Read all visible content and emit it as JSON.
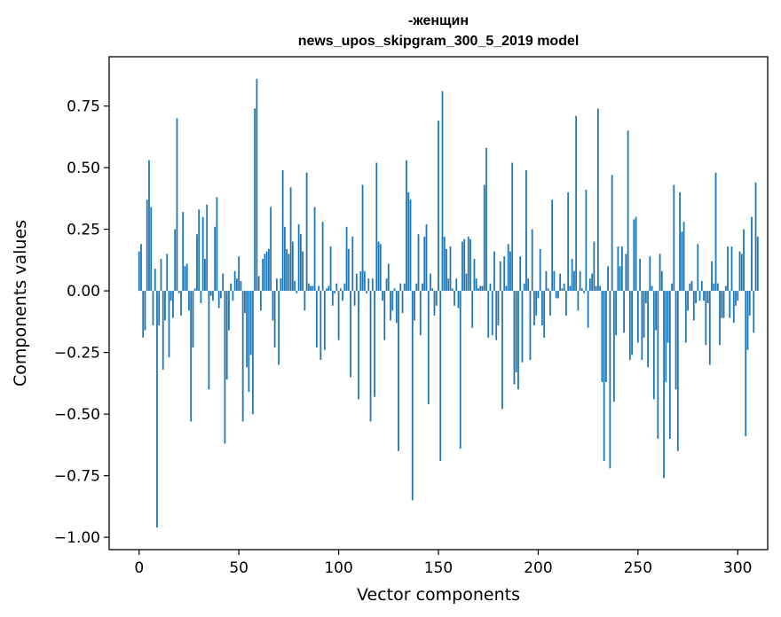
{
  "chart_data": {
    "type": "bar",
    "title_line1": "-женщин",
    "title_line2": "news_upos_skipgram_300_5_2019 model",
    "xlabel": "Vector components",
    "ylabel": "Components values",
    "xlim": [
      -15,
      315
    ],
    "ylim": [
      -1.05,
      0.95
    ],
    "xticks": [
      0,
      50,
      100,
      150,
      200,
      250,
      300
    ],
    "yticks": [
      -1.0,
      -0.75,
      -0.5,
      -0.25,
      0.0,
      0.25,
      0.5,
      0.75
    ],
    "ytick_labels": [
      "−1.00",
      "−0.75",
      "−0.50",
      "−0.25",
      "0.00",
      "0.25",
      "0.50",
      "0.75"
    ],
    "xtick_labels": [
      "0",
      "50",
      "100",
      "150",
      "200",
      "250",
      "300"
    ],
    "bar_color": "#1f77b4",
    "values": [
      0.16,
      0.19,
      -0.19,
      -0.16,
      0.37,
      0.53,
      0.34,
      -0.14,
      0.09,
      -0.96,
      -0.14,
      0.13,
      -0.32,
      -0.12,
      0.15,
      -0.27,
      -0.04,
      -0.11,
      0.25,
      0.7,
      -0.01,
      -0.1,
      0.32,
      0.1,
      0.11,
      -0.08,
      -0.53,
      -0.23,
      0.01,
      0.23,
      0.33,
      -0.05,
      0.3,
      0.13,
      0.35,
      -0.4,
      -0.02,
      -0.04,
      0.26,
      0.38,
      -0.07,
      -0.03,
      0.07,
      -0.62,
      -0.36,
      -0.16,
      0.03,
      -0.04,
      0.08,
      0.05,
      0.14,
      0.04,
      -0.53,
      -0.09,
      -0.31,
      -0.41,
      -0.26,
      -0.5,
      0.74,
      0.86,
      0.06,
      -0.08,
      0.13,
      0.15,
      0.16,
      0.17,
      0.34,
      -0.12,
      -0.23,
      0.05,
      -0.3,
      0.05,
      0.49,
      0.26,
      0.17,
      0.15,
      0.42,
      0.2,
      0.04,
      -0.01,
      0.27,
      0.23,
      0.16,
      -0.08,
      0.48,
      0.03,
      0.02,
      0.02,
      0.34,
      -0.23,
      0.02,
      -0.28,
      0.28,
      -0.24,
      0.01,
      0.02,
      0.18,
      -0.06,
      -0.01,
      0.03,
      -0.2,
      0.01,
      -0.04,
      0.03,
      0.26,
      0.17,
      -0.35,
      0.22,
      -0.06,
      0.07,
      -0.44,
      0.08,
      0.43,
      0.08,
      -0.01,
      0.05,
      -0.53,
      0.05,
      -0.43,
      0.52,
      0.2,
      0.19,
      -0.04,
      -0.2,
      0.05,
      0.11,
      -0.12,
      -0.08,
      0.01,
      -0.13,
      -0.65,
      0.03,
      -0.09,
      0.03,
      0.53,
      0.4,
      0.37,
      -0.85,
      -0.12,
      0.03,
      0.23,
      -0.18,
      0.03,
      0.22,
      0.27,
      -0.46,
      0.07,
      0.01,
      -0.1,
      -0.06,
      0.69,
      -0.69,
      0.81,
      0.22,
      0.17,
      0.05,
      0.18,
      0.01,
      -0.06,
      0.05,
      -0.07,
      -0.64,
      0.2,
      0.21,
      0.07,
      0.22,
      0.21,
      -0.15,
      0.13,
      0.05,
      0.01,
      0.02,
      0.02,
      0.43,
      0.58,
      -0.19,
      0.03,
      -0.18,
      0.16,
      -0.2,
      -0.14,
      0.12,
      -0.48,
      0.14,
      0.02,
      0.19,
      0.16,
      0.52,
      -0.38,
      -0.33,
      -0.4,
      0.14,
      -0.29,
      0.03,
      0.49,
      0.05,
      -0.28,
      0.25,
      -0.14,
      -0.1,
      -0.03,
      0.17,
      -0.14,
      -0.19,
      0.08,
      0.01,
      -0.1,
      0.37,
      0.08,
      -0.03,
      -0.03,
      0.07,
      0.01,
      0.03,
      -0.1,
      0.4,
      0.02,
      0.13,
      0.08,
      0.71,
      -0.08,
      0.08,
      0.01,
      -0.01,
      0.41,
      -0.15,
      0.05,
      0.07,
      0.2,
      0.02,
      0.74,
      0.02,
      -0.37,
      -0.69,
      -0.37,
      0.1,
      -0.72,
      0.47,
      -0.45,
      -0.18,
      0.18,
      0.1,
      0.18,
      -0.17,
      0.15,
      0.65,
      -0.28,
      -0.26,
      0.29,
      0.3,
      -0.21,
      0.13,
      -0.28,
      -0.19,
      -0.05,
      -0.31,
      0.14,
      0.02,
      -0.44,
      -0.16,
      -0.6,
      0.15,
      0.08,
      -0.76,
      -0.37,
      -0.21,
      -0.6,
      0.03,
      0.43,
      -0.4,
      -0.65,
      0.4,
      0.24,
      0.28,
      -0.21,
      -0.08,
      0.03,
      0.04,
      -0.12,
      -0.05,
      0.19,
      -0.04,
      0.04,
      -0.04,
      -0.22,
      -0.05,
      -0.3,
      0.12,
      0.03,
      0.48,
      0.03,
      -0.22,
      -0.11,
      -0.11,
      0.02,
      0.18,
      -0.11,
      0.18,
      -0.13,
      -0.06,
      -0.04,
      0.16,
      0.15,
      0.25,
      -0.59,
      -0.24,
      -0.1,
      0.3,
      -0.17,
      0.44,
      0.22
    ]
  }
}
